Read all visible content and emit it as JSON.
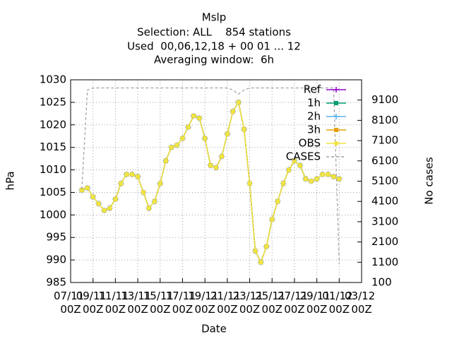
{
  "chart_data": {
    "type": "line",
    "title": "Mslp",
    "subtitle": [
      "Selection: ALL    854 stations",
      "Used  00,06,12,18 + 00 01 ... 12",
      "Averaging window:  6h"
    ],
    "xlabel": "Date",
    "ylabel": "hPa",
    "y2label": "No cases",
    "xlim": [
      "07/11 00Z",
      "03/12 00Z"
    ],
    "xticks": [
      "07/11 00Z",
      "09/11 00Z",
      "11/11 00Z",
      "13/11 00Z",
      "15/11 00Z",
      "17/11 00Z",
      "19/11 00Z",
      "21/11 00Z",
      "23/11 00Z",
      "25/11 00Z",
      "27/11 00Z",
      "29/11 00Z",
      "01/12 00Z",
      "03/12 00Z"
    ],
    "ylim": [
      985,
      1030
    ],
    "yticks": [
      985,
      990,
      995,
      1000,
      1005,
      1010,
      1015,
      1020,
      1025,
      1030
    ],
    "y2lim": [
      100,
      10100
    ],
    "y2ticks": [
      100,
      1100,
      2100,
      3100,
      4100,
      5100,
      6100,
      7100,
      8100,
      9100
    ],
    "grid": true,
    "legend": "top-right",
    "x": [
      "08/11 00Z",
      "08/11 12Z",
      "09/11 00Z",
      "09/11 12Z",
      "10/11 00Z",
      "10/11 12Z",
      "11/11 00Z",
      "11/11 12Z",
      "12/11 00Z",
      "12/11 12Z",
      "13/11 00Z",
      "13/11 12Z",
      "14/11 00Z",
      "14/11 12Z",
      "15/11 00Z",
      "15/11 12Z",
      "16/11 00Z",
      "16/11 12Z",
      "17/11 00Z",
      "17/11 12Z",
      "18/11 00Z",
      "18/11 12Z",
      "19/11 00Z",
      "19/11 12Z",
      "20/11 00Z",
      "20/11 12Z",
      "21/11 00Z",
      "21/11 12Z",
      "22/11 00Z",
      "22/11 12Z",
      "23/11 00Z",
      "23/11 12Z",
      "24/11 00Z",
      "24/11 12Z",
      "25/11 00Z",
      "25/11 12Z",
      "26/11 00Z",
      "26/11 12Z",
      "27/11 00Z",
      "27/11 12Z",
      "28/11 00Z",
      "28/11 12Z",
      "29/11 00Z",
      "29/11 12Z",
      "30/11 00Z",
      "30/11 12Z",
      "01/12 00Z"
    ],
    "series": [
      {
        "name": "Ref",
        "color": "#9400d3",
        "marker": "plus",
        "values": [
          1005.5,
          1006,
          1004,
          1002.5,
          1001,
          1001.5,
          1003.5,
          1007,
          1009,
          1009,
          1008.5,
          1005,
          1001.5,
          1003,
          1007,
          1012,
          1015,
          1015.5,
          1017,
          1019.5,
          1022,
          1021.5,
          1017,
          1011,
          1010.5,
          1013,
          1018,
          1023,
          1025,
          1019,
          1007,
          992,
          989.5,
          993,
          999,
          1003,
          1007,
          1010,
          1012,
          1011,
          1008,
          1007.5,
          1008,
          1009,
          1009,
          1008.5,
          1008
        ]
      },
      {
        "name": "1h",
        "color": "#009e73",
        "marker": "square",
        "values": [
          1005.5,
          1006,
          1004,
          1002.5,
          1001,
          1001.5,
          1003.5,
          1007,
          1009,
          1009,
          1008.5,
          1005,
          1001.5,
          1003,
          1007,
          1012,
          1015,
          1015.5,
          1017,
          1019.5,
          1022,
          1021.5,
          1017,
          1011,
          1010.5,
          1013,
          1018,
          1023,
          1025,
          1019,
          1007,
          992,
          989.5,
          993,
          999,
          1003,
          1007,
          1010,
          1012,
          1011,
          1008,
          1007.5,
          1008,
          1009,
          1009,
          1008.5,
          1008
        ]
      },
      {
        "name": "2h",
        "color": "#56b4e9",
        "marker": "plus",
        "values": [
          1005.5,
          1006,
          1004,
          1002.5,
          1001,
          1001.5,
          1003.5,
          1007,
          1009,
          1009,
          1008.5,
          1005,
          1001.5,
          1003,
          1007,
          1012,
          1015,
          1015.5,
          1017,
          1019.5,
          1022,
          1021.5,
          1017,
          1011,
          1010.5,
          1013,
          1018,
          1023,
          1025,
          1019,
          1007,
          992,
          989.5,
          993,
          999,
          1003,
          1007,
          1010,
          1012,
          1011,
          1008,
          1007.5,
          1008,
          1009,
          1009,
          1008.5,
          1008
        ]
      },
      {
        "name": "3h",
        "color": "#e69f00",
        "marker": "square",
        "values": [
          1005.5,
          1006,
          1004,
          1002.5,
          1001,
          1001.5,
          1003.5,
          1007,
          1009,
          1009,
          1008.5,
          1005,
          1001.5,
          1003,
          1007,
          1012,
          1015,
          1015.5,
          1017,
          1019.5,
          1022,
          1021.5,
          1017,
          1011,
          1010.5,
          1013,
          1018,
          1023,
          1025,
          1019,
          1007,
          992,
          989.5,
          993,
          999,
          1003,
          1007,
          1010,
          1012,
          1011,
          1008,
          1007.5,
          1008,
          1009,
          1009,
          1008.5,
          1008
        ]
      },
      {
        "name": "OBS",
        "color": "#f0e442",
        "marker": "circle",
        "values": [
          1005.5,
          1006,
          1004,
          1002.5,
          1001,
          1001.5,
          1003.5,
          1007,
          1009,
          1009,
          1008.5,
          1005,
          1001.5,
          1003,
          1007,
          1012,
          1015,
          1015.5,
          1017,
          1019.5,
          1022,
          1021.5,
          1017,
          1011,
          1010.5,
          1013,
          1018,
          1023,
          1025,
          1019,
          1007,
          992,
          989.5,
          993,
          999,
          1003,
          1007,
          1010,
          1012,
          1011,
          1008,
          1007.5,
          1008,
          1009,
          1009,
          1008.5,
          1008
        ]
      },
      {
        "name": "CASES",
        "color": "#a0a0a0",
        "dashed": true,
        "axis": "y2",
        "values": [
          4700,
          9600,
          9700,
          9700,
          9700,
          9700,
          9700,
          9700,
          9700,
          9700,
          9700,
          9700,
          9700,
          9700,
          9700,
          9700,
          9700,
          9700,
          9700,
          9700,
          9700,
          9700,
          9700,
          9700,
          9700,
          9700,
          9700,
          9600,
          9400,
          9600,
          9700,
          9700,
          9700,
          9700,
          9700,
          9700,
          9700,
          9700,
          9700,
          9700,
          9700,
          9700,
          9700,
          9700,
          9700,
          9700,
          1000
        ]
      }
    ]
  }
}
